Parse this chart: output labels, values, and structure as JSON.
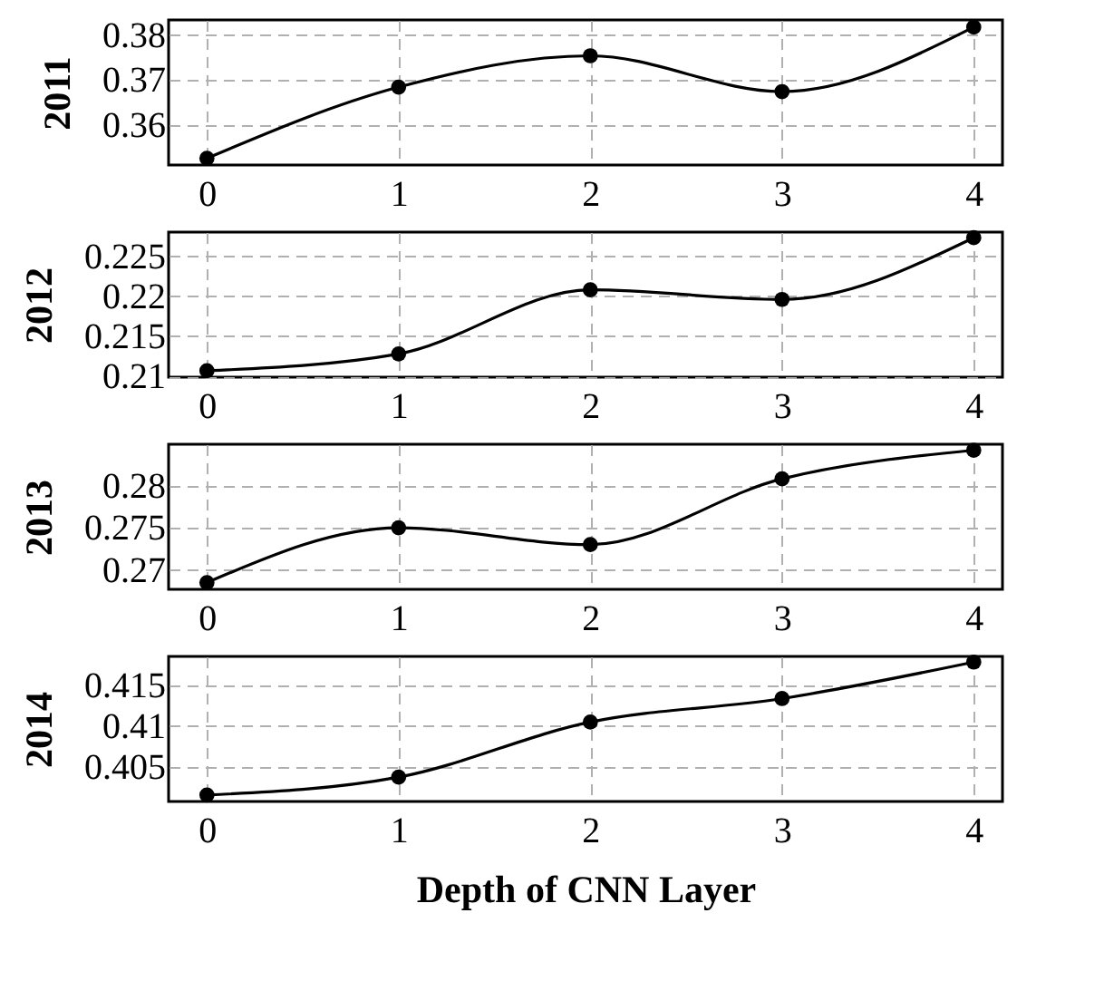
{
  "chart_data": [
    {
      "type": "line",
      "ylabel": "2011",
      "x": [
        0,
        1,
        2,
        3,
        4
      ],
      "xlim": [
        -0.2,
        4.15
      ],
      "xticks": [
        0,
        1,
        2,
        3,
        4
      ],
      "ylim": [
        0.351,
        0.3834
      ],
      "yticks": [
        0.36,
        0.37,
        0.38
      ],
      "series": [
        {
          "color": "#000000",
          "values": [
            0.3525,
            0.3684,
            0.3754,
            0.3674,
            0.3818
          ]
        }
      ],
      "grid": true,
      "marker": "circle",
      "line_style": "solid"
    },
    {
      "type": "line",
      "ylabel": "2012",
      "x": [
        0,
        1,
        2,
        3,
        4
      ],
      "xlim": [
        -0.2,
        4.15
      ],
      "xticks": [
        0,
        1,
        2,
        3,
        4
      ],
      "ylim": [
        0.2099,
        0.228
      ],
      "yticks": [
        0.21,
        0.215,
        0.22,
        0.225
      ],
      "series": [
        {
          "color": "#000000",
          "values": [
            0.2107,
            0.2128,
            0.2208,
            0.2196,
            0.2273
          ]
        }
      ],
      "grid": true,
      "marker": "circle",
      "line_style": "solid"
    },
    {
      "type": "line",
      "ylabel": "2013",
      "x": [
        0,
        1,
        2,
        3,
        4
      ],
      "xlim": [
        -0.2,
        4.15
      ],
      "xticks": [
        0,
        1,
        2,
        3,
        4
      ],
      "ylim": [
        0.2677,
        0.2849
      ],
      "yticks": [
        0.27,
        0.275,
        0.28
      ],
      "series": [
        {
          "color": "#000000",
          "values": [
            0.2685,
            0.275,
            0.273,
            0.2808,
            0.2842
          ]
        }
      ],
      "grid": true,
      "marker": "circle",
      "line_style": "solid"
    },
    {
      "type": "line",
      "ylabel": "2014",
      "xlabel": "Depth of CNN Layer",
      "x": [
        0,
        1,
        2,
        3,
        4
      ],
      "xlim": [
        -0.2,
        4.15
      ],
      "xticks": [
        0,
        1,
        2,
        3,
        4
      ],
      "ylim": [
        0.4007,
        0.4186
      ],
      "yticks": [
        0.405,
        0.41,
        0.415
      ],
      "series": [
        {
          "color": "#000000",
          "values": [
            0.4015,
            0.4037,
            0.4105,
            0.4134,
            0.4179
          ]
        }
      ],
      "grid": true,
      "marker": "circle",
      "line_style": "solid"
    }
  ]
}
